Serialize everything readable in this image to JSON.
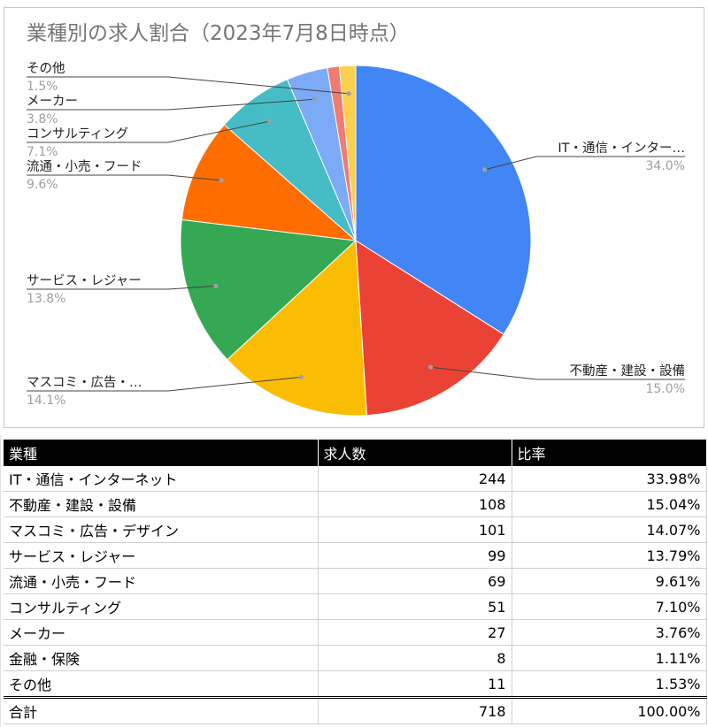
{
  "chart_data": {
    "type": "pie",
    "title": "業種別の求人割合（2023年7月8日時点）",
    "slices": [
      {
        "label": "IT・通信・インター…",
        "value": 34.0,
        "pct_label": "34.0%",
        "color": "#4285f4"
      },
      {
        "label": "不動産・建設・設備",
        "value": 15.0,
        "pct_label": "15.0%",
        "color": "#ea4335"
      },
      {
        "label": "マスコミ・広告・…",
        "value": 14.1,
        "pct_label": "14.1%",
        "color": "#fbbc04"
      },
      {
        "label": "サービス・レジャー",
        "value": 13.8,
        "pct_label": "13.8%",
        "color": "#34a853"
      },
      {
        "label": "流通・小売・フード",
        "value": 9.6,
        "pct_label": "9.6%",
        "color": "#ff6d01"
      },
      {
        "label": "コンサルティング",
        "value": 7.1,
        "pct_label": "7.1%",
        "color": "#46bdc6"
      },
      {
        "label": "メーカー",
        "value": 3.8,
        "pct_label": "3.8%",
        "color": "#7baaf7"
      },
      {
        "label": "",
        "value": 1.1,
        "pct_label": "",
        "color": "#f07b72"
      },
      {
        "label": "その他",
        "value": 1.5,
        "pct_label": "1.5%",
        "color": "#fcd04f"
      }
    ]
  },
  "table": {
    "headers": [
      "業種",
      "求人数",
      "比率"
    ],
    "rows": [
      [
        "IT・通信・インターネット",
        "244",
        "33.98%"
      ],
      [
        "不動産・建設・設備",
        "108",
        "15.04%"
      ],
      [
        "マスコミ・広告・デザイン",
        "101",
        "14.07%"
      ],
      [
        "サービス・レジャー",
        "99",
        "13.79%"
      ],
      [
        "流通・小売・フード",
        "69",
        "9.61%"
      ],
      [
        "コンサルティング",
        "51",
        "7.10%"
      ],
      [
        "メーカー",
        "27",
        "3.76%"
      ],
      [
        "金融・保険",
        "8",
        "1.11%"
      ],
      [
        "その他",
        "11",
        "1.53%"
      ]
    ],
    "total": [
      "合計",
      "718",
      "100.00%"
    ]
  }
}
